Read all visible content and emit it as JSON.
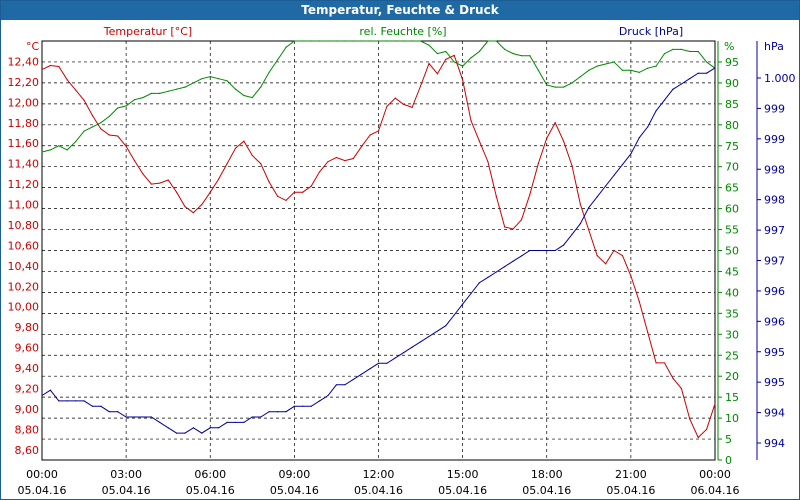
{
  "window": {
    "title": "Temperatur, Feuchte & Druck"
  },
  "colors": {
    "temperature": "#cc0000",
    "humidity": "#008800",
    "pressure": "#000099",
    "grid": "#000000",
    "text": "#000000",
    "titlebar": "#1f6aa5"
  },
  "chart_data": {
    "type": "line",
    "title": "Temperatur, Feuchte & Druck",
    "grid": true,
    "series_labels": {
      "temperature": "Temperatur [°C]",
      "humidity": "rel. Feuchte [%]",
      "pressure": "Druck [hPa]"
    },
    "axes": {
      "left": {
        "unit": "°C",
        "ylim": [
          8.5,
          12.6
        ],
        "ticks": [
          "8,60",
          "8,80",
          "9,00",
          "9,20",
          "9,40",
          "9,60",
          "9,80",
          "10,00",
          "10,20",
          "10,40",
          "10,60",
          "10,80",
          "11,00",
          "11,20",
          "11,40",
          "11,60",
          "11,80",
          "12,00",
          "12,20",
          "12,40"
        ]
      },
      "right1": {
        "unit": "%",
        "ylim": [
          0,
          100
        ],
        "ticks": [
          "0",
          "5",
          "10",
          "15",
          "20",
          "25",
          "30",
          "35",
          "40",
          "45",
          "50",
          "55",
          "60",
          "65",
          "70",
          "75",
          "80",
          "85",
          "90",
          "95"
        ]
      },
      "right2": {
        "unit": "hPa",
        "ylim": [
          993.4,
          1001.2
        ],
        "ticks": [
          "994",
          "994",
          "995",
          "995",
          "996",
          "996",
          "997",
          "997",
          "998",
          "998",
          "999",
          "999",
          "1.000"
        ]
      }
    },
    "x_ticks": [
      {
        "time": "00:00",
        "date": "05.04.16"
      },
      {
        "time": "03:00",
        "date": "05.04.16"
      },
      {
        "time": "06:00",
        "date": "05.04.16"
      },
      {
        "time": "09:00",
        "date": "05.04.16"
      },
      {
        "time": "12:00",
        "date": "05.04.16"
      },
      {
        "time": "15:00",
        "date": "05.04.16"
      },
      {
        "time": "18:00",
        "date": "05.04.16"
      },
      {
        "time": "21:00",
        "date": "05.04.16"
      },
      {
        "time": "00:00",
        "date": "06.04.16"
      }
    ],
    "x_range_hours": [
      0,
      24
    ],
    "series": [
      {
        "name": "Temperatur [°C]",
        "key": "temperature",
        "axis": "left",
        "x_hours": [
          0,
          0.3,
          0.6,
          0.9,
          1.2,
          1.5,
          1.8,
          2.1,
          2.4,
          2.7,
          3.0,
          3.3,
          3.6,
          3.9,
          4.2,
          4.5,
          4.8,
          5.1,
          5.4,
          5.7,
          6.0,
          6.3,
          6.6,
          6.9,
          7.2,
          7.5,
          7.8,
          8.1,
          8.4,
          8.7,
          9.0,
          9.3,
          9.6,
          9.9,
          10.2,
          10.5,
          10.8,
          11.1,
          11.4,
          11.7,
          12.0,
          12.3,
          12.6,
          12.9,
          13.2,
          13.5,
          13.8,
          14.1,
          14.4,
          14.7,
          15.0,
          15.3,
          15.6,
          15.9,
          16.2,
          16.5,
          16.8,
          17.1,
          17.4,
          17.7,
          18.0,
          18.3,
          18.6,
          18.9,
          19.2,
          19.5,
          19.8,
          20.1,
          20.4,
          20.7,
          21.0,
          21.3,
          21.6,
          21.9,
          22.2,
          22.5,
          22.8,
          23.1,
          23.4,
          23.7,
          24.0
        ],
        "values": [
          12.32,
          12.36,
          12.35,
          12.22,
          12.12,
          12.02,
          11.87,
          11.74,
          11.68,
          11.67,
          11.57,
          11.43,
          11.3,
          11.2,
          11.21,
          11.24,
          11.12,
          10.98,
          10.92,
          11.0,
          11.12,
          11.25,
          11.4,
          11.55,
          11.62,
          11.48,
          11.4,
          11.22,
          11.08,
          11.04,
          11.12,
          11.12,
          11.18,
          11.32,
          11.42,
          11.46,
          11.43,
          11.45,
          11.57,
          11.68,
          11.72,
          11.96,
          12.04,
          11.98,
          11.95,
          12.16,
          12.38,
          12.28,
          12.42,
          12.46,
          12.22,
          11.82,
          11.62,
          11.42,
          11.08,
          10.78,
          10.76,
          10.85,
          11.1,
          11.4,
          11.65,
          11.8,
          11.62,
          11.38,
          11.0,
          10.75,
          10.5,
          10.42,
          10.55,
          10.5,
          10.3,
          10.05,
          9.75,
          9.45,
          9.45,
          9.3,
          9.2,
          8.9,
          8.72,
          8.8,
          9.05
        ]
      },
      {
        "name": "rel. Feuchte [%]",
        "key": "humidity",
        "axis": "right1",
        "x_hours": [
          0,
          0.3,
          0.6,
          0.9,
          1.2,
          1.5,
          1.8,
          2.1,
          2.4,
          2.7,
          3.0,
          3.3,
          3.6,
          3.9,
          4.2,
          4.5,
          4.8,
          5.1,
          5.4,
          5.7,
          6.0,
          6.3,
          6.6,
          6.9,
          7.2,
          7.5,
          7.8,
          8.1,
          8.4,
          8.7,
          9.0,
          9.3,
          9.6,
          9.9,
          10.2,
          10.5,
          10.8,
          11.1,
          11.4,
          11.7,
          12.0,
          12.3,
          12.6,
          12.9,
          13.2,
          13.5,
          13.8,
          14.1,
          14.4,
          14.7,
          15.0,
          15.3,
          15.6,
          15.9,
          16.2,
          16.5,
          16.8,
          17.1,
          17.4,
          17.7,
          18.0,
          18.3,
          18.6,
          18.9,
          19.2,
          19.5,
          19.8,
          20.1,
          20.4,
          20.7,
          21.0,
          21.3,
          21.6,
          21.9,
          22.2,
          22.5,
          22.8,
          23.1,
          23.4,
          23.7,
          24.0
        ],
        "values": [
          73.5,
          74,
          75,
          74,
          76,
          78.5,
          79.5,
          80.5,
          82,
          84,
          84.5,
          86,
          86.5,
          87.5,
          87.5,
          88,
          88.5,
          89,
          90,
          91,
          91.5,
          91,
          90.5,
          88.5,
          87,
          86.5,
          89,
          92.5,
          95.5,
          98.5,
          100,
          100,
          100,
          100,
          100,
          100,
          100,
          100,
          100,
          100,
          100,
          100,
          100,
          100,
          100,
          100,
          99,
          97,
          97.5,
          95,
          94,
          96,
          97.5,
          100,
          100,
          98,
          97,
          96.5,
          96.5,
          93,
          89.5,
          89,
          89,
          90,
          91.5,
          93,
          94,
          94.5,
          95,
          93,
          93,
          92.5,
          93.5,
          94,
          97,
          98,
          98,
          97.5,
          97.5,
          95,
          93.5
        ]
      },
      {
        "name": "Druck [hPa]",
        "key": "pressure",
        "axis": "right2",
        "x_hours": [
          0,
          0.3,
          0.6,
          0.9,
          1.2,
          1.5,
          1.8,
          2.1,
          2.4,
          2.7,
          3.0,
          3.3,
          3.6,
          3.9,
          4.2,
          4.5,
          4.8,
          5.1,
          5.4,
          5.7,
          6.0,
          6.3,
          6.6,
          6.9,
          7.2,
          7.5,
          7.8,
          8.1,
          8.4,
          8.7,
          9.0,
          9.3,
          9.6,
          9.9,
          10.2,
          10.5,
          10.8,
          11.1,
          11.4,
          11.7,
          12.0,
          12.3,
          12.6,
          12.9,
          13.2,
          13.5,
          13.8,
          14.1,
          14.4,
          14.7,
          15.0,
          15.3,
          15.6,
          15.9,
          16.2,
          16.5,
          16.8,
          17.1,
          17.4,
          17.7,
          18.0,
          18.3,
          18.6,
          18.9,
          19.2,
          19.5,
          19.8,
          20.1,
          20.4,
          20.7,
          21.0,
          21.3,
          21.6,
          21.9,
          22.2,
          22.5,
          22.8,
          23.1,
          23.4,
          23.7,
          24.0
        ],
        "values": [
          994.6,
          994.7,
          994.5,
          994.5,
          994.5,
          994.5,
          994.4,
          994.4,
          994.3,
          994.3,
          994.2,
          994.2,
          994.2,
          994.2,
          994.1,
          994.0,
          993.9,
          993.9,
          994.0,
          993.9,
          994.0,
          994.0,
          994.1,
          994.1,
          994.1,
          994.2,
          994.2,
          994.3,
          994.3,
          994.3,
          994.4,
          994.4,
          994.4,
          994.5,
          994.6,
          994.8,
          994.8,
          994.9,
          995.0,
          995.1,
          995.2,
          995.2,
          995.3,
          995.4,
          995.5,
          995.6,
          995.7,
          995.8,
          995.9,
          996.1,
          996.3,
          996.5,
          996.7,
          996.8,
          996.9,
          997.0,
          997.1,
          997.2,
          997.3,
          997.3,
          997.3,
          997.3,
          997.4,
          997.6,
          997.8,
          998.1,
          998.3,
          998.5,
          998.7,
          998.9,
          999.1,
          999.4,
          999.6,
          999.9,
          1000.1,
          1000.3,
          1000.4,
          1000.5,
          1000.6,
          1000.6,
          1000.7
        ]
      }
    ]
  }
}
